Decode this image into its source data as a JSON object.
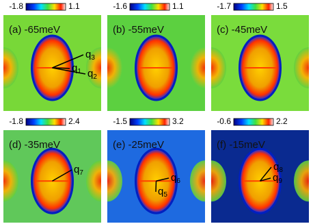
{
  "panels": [
    {
      "label": "(a) -65meV",
      "cbar_min": "-1.8",
      "cbar_max": "1.1",
      "q": [
        {
          "text": "q",
          "sub": "1"
        },
        {
          "text": "q",
          "sub": "2"
        },
        {
          "text": "q",
          "sub": "3"
        }
      ]
    },
    {
      "label": "(b) -55meV",
      "cbar_min": "-1.6",
      "cbar_max": "1.1",
      "q": []
    },
    {
      "label": "(c) -45meV",
      "cbar_min": "-1.7",
      "cbar_max": "1.5",
      "q": []
    },
    {
      "label": "(d) -35meV",
      "cbar_min": "-1.8",
      "cbar_max": "2.4",
      "q": [
        {
          "text": "q",
          "sub": "7"
        }
      ]
    },
    {
      "label": "(e) -25meV",
      "cbar_min": "-1.5",
      "cbar_max": "3.2",
      "q": [
        {
          "text": "q",
          "sub": "5"
        },
        {
          "text": "q",
          "sub": "6"
        }
      ]
    },
    {
      "label": "(f) -15meV",
      "cbar_min": "-0.6",
      "cbar_max": "2.2",
      "q": [
        {
          "text": "q",
          "sub": "8"
        },
        {
          "text": "q",
          "sub": "9"
        }
      ]
    }
  ]
}
